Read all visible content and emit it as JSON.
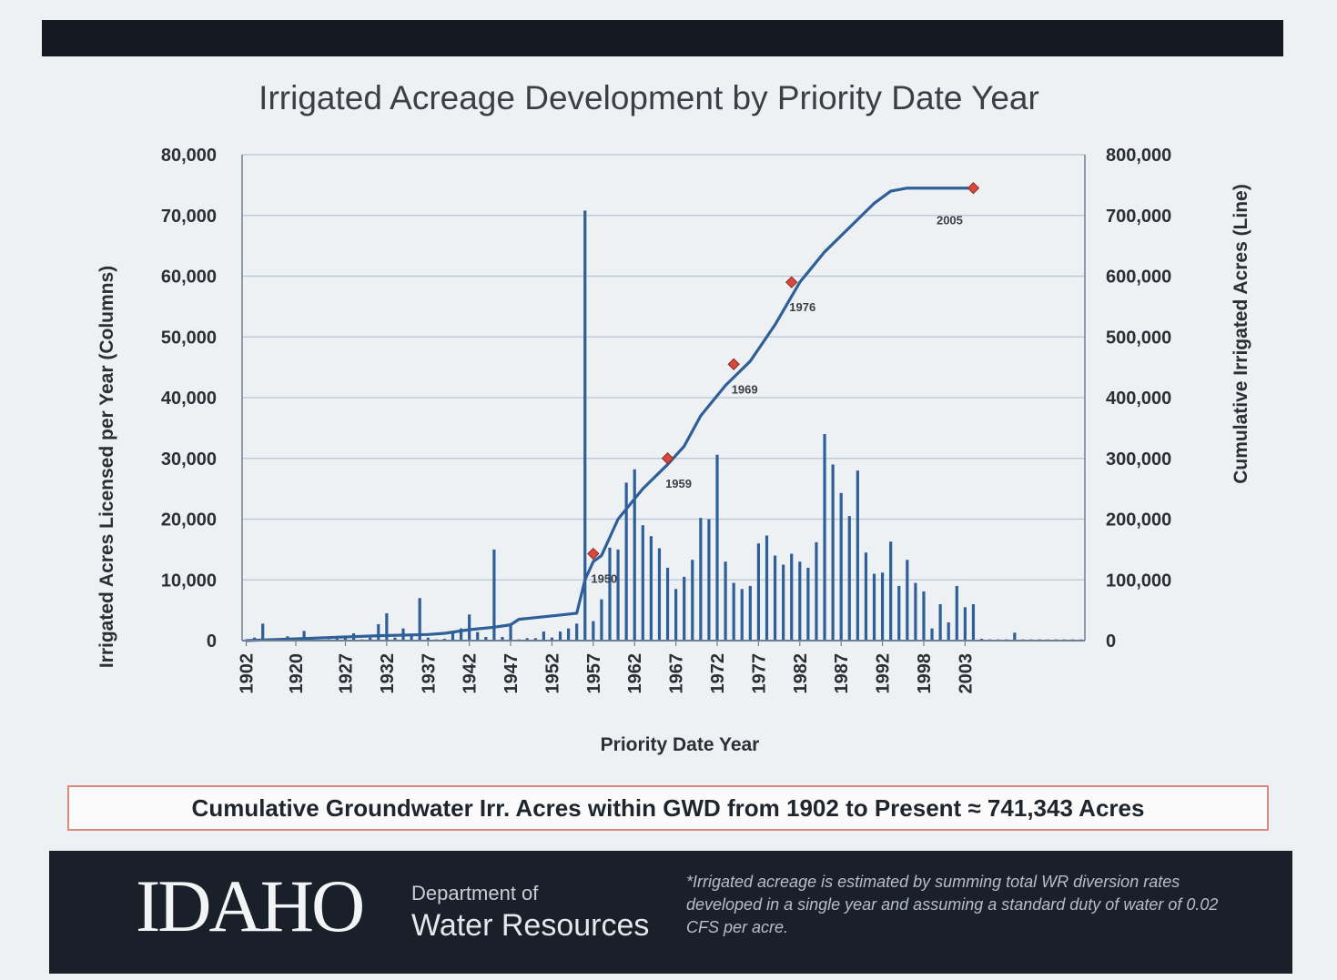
{
  "summary": "Cumulative Groundwater Irr. Acres  within GWD from 1902 to Present ≈ 741,343 Acres",
  "footer": {
    "logo_text": "IDAHO",
    "dept_line1": "Department of",
    "dept_line2": "Water Resources",
    "footnote": "*Irrigated acreage is estimated by summing total WR diversion rates developed in a single year and assuming a standard duty of water of 0.02 CFS per acre."
  },
  "colors": {
    "series": "#2f5f98",
    "marker": "#d7493c",
    "grid": "#b7c4d4"
  },
  "chart_data": {
    "type": "bar",
    "title": "Irrigated Acreage Development by Priority Date Year",
    "xlabel": "Priority Date Year",
    "ylabel": "Irrigated Acres Licensed per Year (Columns)",
    "y2label": "Cumulative Irrigated Acres (Line)",
    "ylim": [
      0,
      80000
    ],
    "y2lim": [
      0,
      800000
    ],
    "yticks": [
      "0",
      "10,000",
      "20,000",
      "30,000",
      "40,000",
      "50,000",
      "60,000",
      "70,000",
      "80,000"
    ],
    "y2ticks": [
      "0",
      "100,000",
      "200,000",
      "300,000",
      "400,000",
      "500,000",
      "600,000",
      "700,000",
      "800,000"
    ],
    "xticks": [
      {
        "label": "1902",
        "x": 0
      },
      {
        "label": "1920",
        "x": 6
      },
      {
        "label": "1927",
        "x": 12
      },
      {
        "label": "1932",
        "x": 17
      },
      {
        "label": "1937",
        "x": 22
      },
      {
        "label": "1942",
        "x": 27
      },
      {
        "label": "1947",
        "x": 32
      },
      {
        "label": "1952",
        "x": 37
      },
      {
        "label": "1957",
        "x": 42
      },
      {
        "label": "1962",
        "x": 47
      },
      {
        "label": "1967",
        "x": 52
      },
      {
        "label": "1972",
        "x": 57
      },
      {
        "label": "1977",
        "x": 62
      },
      {
        "label": "1982",
        "x": 67
      },
      {
        "label": "1987",
        "x": 72
      },
      {
        "label": "1992",
        "x": 77
      },
      {
        "label": "1998",
        "x": 82
      },
      {
        "label": "2003",
        "x": 87
      }
    ],
    "bars": [
      200,
      500,
      2800,
      300,
      200,
      700,
      200,
      1600,
      200,
      100,
      200,
      300,
      500,
      1200,
      200,
      500,
      2700,
      4500,
      500,
      2000,
      1100,
      7000,
      500,
      200,
      300,
      1400,
      2000,
      4300,
      1400,
      600,
      15000,
      600,
      2500,
      200,
      400,
      400,
      1500,
      500,
      1500,
      2000,
      2800,
      70800,
      3200,
      6800,
      15300,
      15000,
      26000,
      28200,
      19000,
      17200,
      15200,
      12000,
      8500,
      10500,
      13300,
      20200,
      20000,
      30600,
      13000,
      9500,
      8500,
      9000,
      16000,
      17300,
      14000,
      12500,
      14300,
      13000,
      12000,
      16200,
      34000,
      29000,
      24300,
      20500,
      28000,
      14500,
      11000,
      11200,
      16300,
      9000,
      13300,
      9500,
      8100,
      2000,
      6000,
      3000,
      9000,
      5500,
      6000,
      300,
      200,
      200,
      200,
      1300,
      200,
      200,
      200,
      200,
      200,
      200,
      200,
      200
    ],
    "cumulative": [
      [
        0,
        0
      ],
      [
        4,
        2000
      ],
      [
        10,
        5000
      ],
      [
        16,
        8000
      ],
      [
        22,
        10000
      ],
      [
        24,
        12000
      ],
      [
        27,
        18000
      ],
      [
        30,
        22000
      ],
      [
        32,
        26000
      ],
      [
        33,
        35000
      ],
      [
        38,
        42000
      ],
      [
        40,
        45000
      ],
      [
        41,
        100000
      ],
      [
        42,
        130000
      ],
      [
        43,
        140000
      ],
      [
        45,
        200000
      ],
      [
        48,
        250000
      ],
      [
        51,
        290000
      ],
      [
        53,
        320000
      ],
      [
        55,
        370000
      ],
      [
        58,
        420000
      ],
      [
        61,
        460000
      ],
      [
        64,
        520000
      ],
      [
        67,
        590000
      ],
      [
        70,
        640000
      ],
      [
        73,
        680000
      ],
      [
        76,
        720000
      ],
      [
        78,
        740000
      ],
      [
        80,
        745000
      ],
      [
        84,
        745000
      ],
      [
        88,
        745000
      ]
    ],
    "annotations": [
      {
        "label": "1950",
        "x": 42,
        "y": 143000
      },
      {
        "label": "1959",
        "x": 51,
        "y": 300000
      },
      {
        "label": "1969",
        "x": 59,
        "y": 455000
      },
      {
        "label": "1976",
        "x": 66,
        "y": 590000
      },
      {
        "label": "2005",
        "x": 88,
        "y": 745000
      }
    ]
  }
}
